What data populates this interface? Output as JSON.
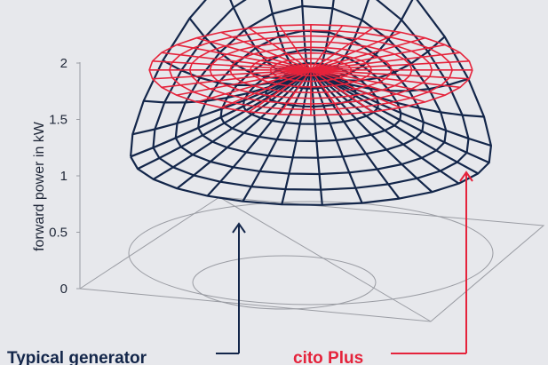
{
  "colors": {
    "background": "#e7e8ec",
    "typical": "#13264a",
    "cito": "#e5233b",
    "floor": "#9a9ca3",
    "text": "#1e2637"
  },
  "chart_data": {
    "type": "surface-3d",
    "ylabel": "forward power in kW",
    "ylim": [
      0,
      2
    ],
    "y_ticks": [
      {
        "value": 0,
        "label": "0"
      },
      {
        "value": 0.5,
        "label": "0.5"
      },
      {
        "value": 1,
        "label": "1"
      },
      {
        "value": 1.5,
        "label": "1.5"
      },
      {
        "value": 2,
        "label": "2"
      }
    ],
    "series": [
      {
        "name": "Typical generator",
        "shape": "bowl, rising toward the rear from about 0.4 kW to above 2 kW",
        "color": "#13264a"
      },
      {
        "name": "cito Plus",
        "shape": "flat disc at constant 1.3 kW",
        "color": "#e5233b",
        "value": 1.3
      }
    ],
    "callouts": [
      {
        "text": "Typical generator",
        "series": "Typical generator"
      },
      {
        "text": "cito Plus",
        "series": "cito Plus"
      }
    ]
  }
}
